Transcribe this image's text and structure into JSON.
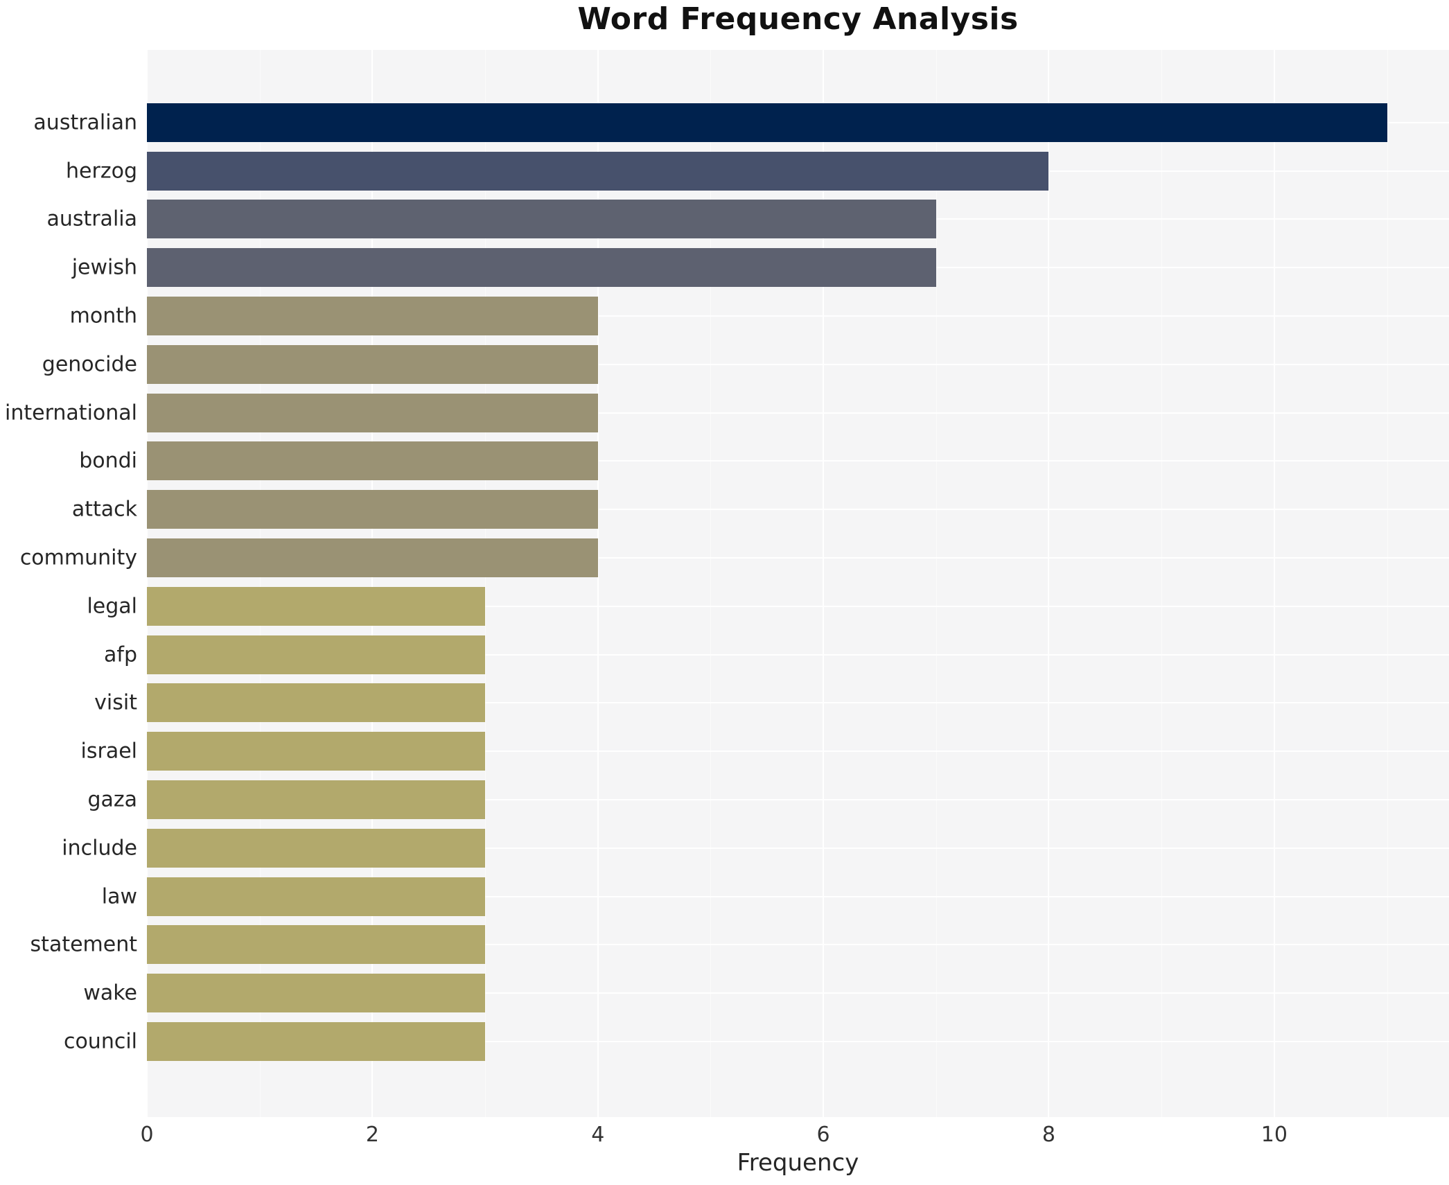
{
  "chart_data": {
    "type": "bar",
    "orientation": "horizontal",
    "title": "Word Frequency Analysis",
    "xlabel": "Frequency",
    "ylabel": "",
    "categories": [
      "australian",
      "herzog",
      "australia",
      "jewish",
      "month",
      "genocide",
      "international",
      "bondi",
      "attack",
      "community",
      "legal",
      "afp",
      "visit",
      "israel",
      "gaza",
      "include",
      "law",
      "statement",
      "wake",
      "council"
    ],
    "values": [
      11,
      8,
      7,
      7,
      4,
      4,
      4,
      4,
      4,
      4,
      3,
      3,
      3,
      3,
      3,
      3,
      3,
      3,
      3,
      3
    ],
    "bar_colors": [
      "#00224e",
      "#47516c",
      "#5e6270",
      "#5d6170",
      "#9a9274",
      "#9a9274",
      "#9a9274",
      "#9a9274",
      "#9a9274",
      "#9a9274",
      "#b2a96c",
      "#b2a96c",
      "#b2a96c",
      "#b2a96c",
      "#b2a96c",
      "#b2a96c",
      "#b2a96c",
      "#b2a96c",
      "#b2a96c",
      "#b2a96c"
    ],
    "xlim": [
      0,
      11.55
    ],
    "xticks": [
      0,
      2,
      4,
      6,
      8,
      10
    ],
    "xticks_minor": [
      1,
      3,
      5,
      7,
      9,
      11
    ],
    "grid": true,
    "legend": false,
    "colors": {
      "figure_background": "#ffffff",
      "plot_background": "#f5f5f6",
      "gridline": "#ffffff",
      "title_text": "#111111",
      "label_text": "#262626",
      "tick_text": "#333333"
    }
  }
}
